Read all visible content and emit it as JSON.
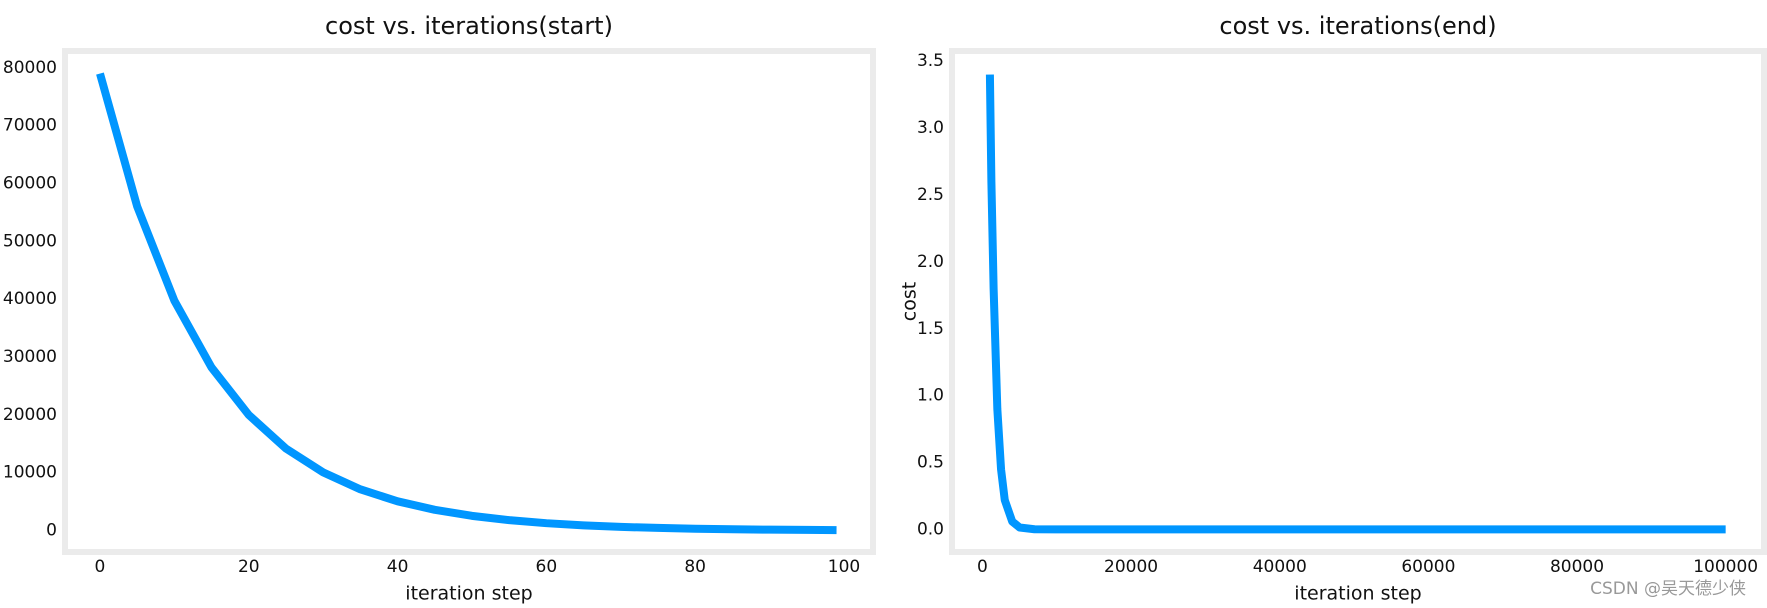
{
  "chart_data": [
    {
      "type": "line",
      "title": "cost vs. iterations(start)",
      "xlabel": "iteration step",
      "color": "#0096ff",
      "x": [
        0,
        5,
        10,
        15,
        20,
        25,
        30,
        35,
        40,
        45,
        50,
        55,
        60,
        65,
        70,
        75,
        80,
        85,
        90,
        95,
        99
      ],
      "values": [
        79000,
        56030,
        39740,
        28190,
        19990,
        14180,
        10060,
        7130,
        5060,
        3590,
        2550,
        1810,
        1280,
        910,
        640,
        460,
        320,
        230,
        160,
        120,
        90
      ],
      "xlim": [
        -4.7,
        103.9
      ],
      "ylim": [
        -3700,
        82900
      ],
      "xticks": [
        0,
        20,
        40,
        60,
        80,
        100
      ],
      "yticks": [
        0,
        10000,
        20000,
        30000,
        40000,
        50000,
        60000,
        70000,
        80000
      ]
    },
    {
      "type": "line",
      "title": "cost vs. iterations(end)",
      "xlabel": "iteration step",
      "ylabel": "cost",
      "color": "#0096ff",
      "x": [
        1000,
        1200,
        1500,
        2000,
        2500,
        3000,
        4000,
        5000,
        7000,
        10000,
        100000
      ],
      "values": [
        3.4,
        2.6,
        1.8,
        0.9,
        0.45,
        0.22,
        0.06,
        0.015,
        0.002,
        0.001,
        0.001
      ],
      "xlim": [
        -4100,
        105160
      ],
      "ylim": [
        -0.168,
        3.576
      ],
      "xticks": [
        0,
        20000,
        40000,
        60000,
        80000,
        100000
      ],
      "yticks": [
        {
          "value": 0,
          "label": "0.0"
        },
        0.5,
        {
          "value": 1,
          "label": "1.0"
        },
        1.5,
        {
          "value": 2,
          "label": "2.0"
        },
        2.5,
        {
          "value": 3,
          "label": "3.0"
        },
        3.5
      ]
    }
  ],
  "watermark": "CSDN @吴天德少侠"
}
